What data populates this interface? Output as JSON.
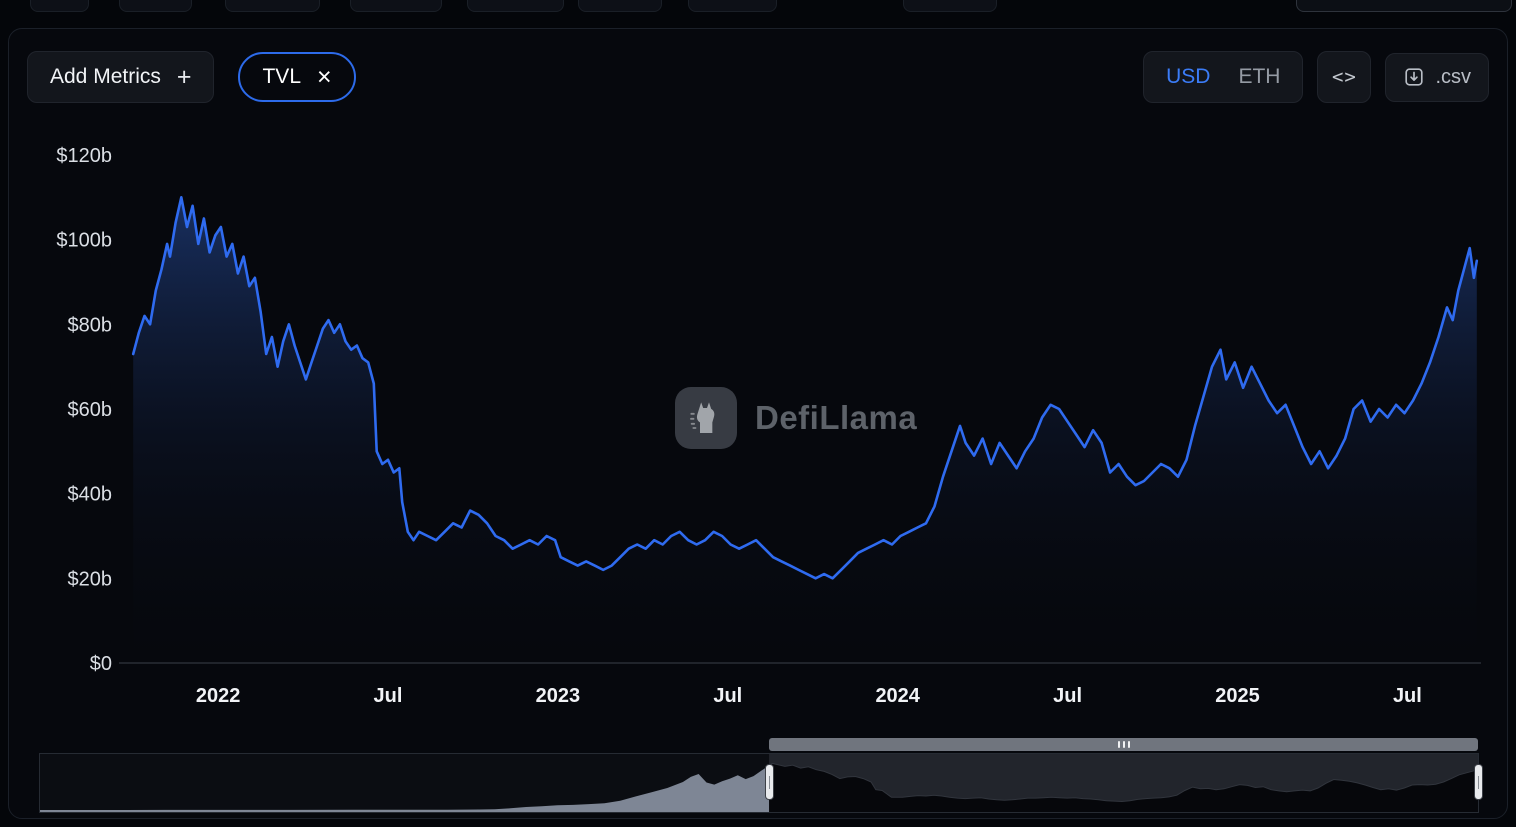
{
  "toolbar": {
    "add_metrics_label": "Add Metrics",
    "add_metrics_icon": "+",
    "metric_pill": {
      "label": "TVL",
      "close_icon": "×"
    },
    "currency_toggle": {
      "options": [
        "USD",
        "ETH"
      ],
      "selected": "USD"
    },
    "embed_icon": "<>",
    "csv_label": ".csv"
  },
  "watermark": {
    "label": "DefiLlama"
  },
  "chart_data": {
    "type": "area",
    "title": "",
    "series_name": "TVL",
    "unit": "USD billions",
    "line_color": "#2f6bf0",
    "x_unit": "months since 2021-10",
    "x_domain": [
      -0.5,
      47.6
    ],
    "y_domain": [
      0,
      120
    ],
    "y_ticks": [
      {
        "v": 120,
        "label": "$120b"
      },
      {
        "v": 100,
        "label": "$100b"
      },
      {
        "v": 80,
        "label": "$80b"
      },
      {
        "v": 60,
        "label": "$60b"
      },
      {
        "v": 40,
        "label": "$40b"
      },
      {
        "v": 20,
        "label": "$20b"
      },
      {
        "v": 0,
        "label": "$0"
      }
    ],
    "x_ticks": [
      {
        "t": 3,
        "label": "2022"
      },
      {
        "t": 9,
        "label": "Jul"
      },
      {
        "t": 15,
        "label": "2023"
      },
      {
        "t": 21,
        "label": "Jul"
      },
      {
        "t": 27,
        "label": "2024"
      },
      {
        "t": 33,
        "label": "Jul"
      },
      {
        "t": 39,
        "label": "2025"
      },
      {
        "t": 45,
        "label": "Jul"
      }
    ],
    "series": [
      {
        "name": "TVL",
        "points": [
          [
            0,
            73
          ],
          [
            0.2,
            78
          ],
          [
            0.4,
            82
          ],
          [
            0.6,
            80
          ],
          [
            0.8,
            88
          ],
          [
            1,
            93
          ],
          [
            1.2,
            99
          ],
          [
            1.3,
            96
          ],
          [
            1.5,
            104
          ],
          [
            1.7,
            110
          ],
          [
            1.9,
            103
          ],
          [
            2.1,
            108
          ],
          [
            2.3,
            99
          ],
          [
            2.5,
            105
          ],
          [
            2.7,
            97
          ],
          [
            2.9,
            101
          ],
          [
            3.1,
            103
          ],
          [
            3.3,
            96
          ],
          [
            3.5,
            99
          ],
          [
            3.7,
            92
          ],
          [
            3.9,
            96
          ],
          [
            4.1,
            89
          ],
          [
            4.3,
            91
          ],
          [
            4.5,
            83
          ],
          [
            4.7,
            73
          ],
          [
            4.9,
            77
          ],
          [
            5.1,
            70
          ],
          [
            5.3,
            76
          ],
          [
            5.5,
            80
          ],
          [
            5.7,
            75
          ],
          [
            5.9,
            71
          ],
          [
            6.1,
            67
          ],
          [
            6.3,
            71
          ],
          [
            6.5,
            75
          ],
          [
            6.7,
            79
          ],
          [
            6.9,
            81
          ],
          [
            7.1,
            78
          ],
          [
            7.3,
            80
          ],
          [
            7.5,
            76
          ],
          [
            7.7,
            74
          ],
          [
            7.9,
            75
          ],
          [
            8.1,
            72
          ],
          [
            8.3,
            71
          ],
          [
            8.5,
            66
          ],
          [
            8.6,
            50
          ],
          [
            8.8,
            47
          ],
          [
            9,
            48
          ],
          [
            9.2,
            45
          ],
          [
            9.4,
            46
          ],
          [
            9.5,
            38
          ],
          [
            9.7,
            31
          ],
          [
            9.9,
            29
          ],
          [
            10.1,
            31
          ],
          [
            10.4,
            30
          ],
          [
            10.7,
            29
          ],
          [
            11,
            31
          ],
          [
            11.3,
            33
          ],
          [
            11.6,
            32
          ],
          [
            11.9,
            36
          ],
          [
            12.2,
            35
          ],
          [
            12.5,
            33
          ],
          [
            12.8,
            30
          ],
          [
            13.1,
            29
          ],
          [
            13.4,
            27
          ],
          [
            13.7,
            28
          ],
          [
            14,
            29
          ],
          [
            14.3,
            28
          ],
          [
            14.6,
            30
          ],
          [
            14.9,
            29
          ],
          [
            15.1,
            25
          ],
          [
            15.4,
            24
          ],
          [
            15.7,
            23
          ],
          [
            16,
            24
          ],
          [
            16.3,
            23
          ],
          [
            16.6,
            22
          ],
          [
            16.9,
            23
          ],
          [
            17.2,
            25
          ],
          [
            17.5,
            27
          ],
          [
            17.8,
            28
          ],
          [
            18.1,
            27
          ],
          [
            18.4,
            29
          ],
          [
            18.7,
            28
          ],
          [
            19,
            30
          ],
          [
            19.3,
            31
          ],
          [
            19.6,
            29
          ],
          [
            19.9,
            28
          ],
          [
            20.2,
            29
          ],
          [
            20.5,
            31
          ],
          [
            20.8,
            30
          ],
          [
            21.1,
            28
          ],
          [
            21.4,
            27
          ],
          [
            21.7,
            28
          ],
          [
            22,
            29
          ],
          [
            22.3,
            27
          ],
          [
            22.6,
            25
          ],
          [
            22.9,
            24
          ],
          [
            23.2,
            23
          ],
          [
            23.5,
            22
          ],
          [
            23.8,
            21
          ],
          [
            24.1,
            20
          ],
          [
            24.4,
            21
          ],
          [
            24.7,
            20
          ],
          [
            25,
            22
          ],
          [
            25.3,
            24
          ],
          [
            25.6,
            26
          ],
          [
            25.9,
            27
          ],
          [
            26.2,
            28
          ],
          [
            26.5,
            29
          ],
          [
            26.8,
            28
          ],
          [
            27.1,
            30
          ],
          [
            27.4,
            31
          ],
          [
            27.7,
            32
          ],
          [
            28,
            33
          ],
          [
            28.3,
            37
          ],
          [
            28.6,
            44
          ],
          [
            28.9,
            50
          ],
          [
            29.2,
            56
          ],
          [
            29.4,
            52
          ],
          [
            29.7,
            49
          ],
          [
            30,
            53
          ],
          [
            30.3,
            47
          ],
          [
            30.6,
            52
          ],
          [
            30.9,
            49
          ],
          [
            31.2,
            46
          ],
          [
            31.5,
            50
          ],
          [
            31.8,
            53
          ],
          [
            32.1,
            58
          ],
          [
            32.4,
            61
          ],
          [
            32.7,
            60
          ],
          [
            33,
            57
          ],
          [
            33.3,
            54
          ],
          [
            33.6,
            51
          ],
          [
            33.9,
            55
          ],
          [
            34.2,
            52
          ],
          [
            34.5,
            45
          ],
          [
            34.8,
            47
          ],
          [
            35.1,
            44
          ],
          [
            35.4,
            42
          ],
          [
            35.7,
            43
          ],
          [
            36,
            45
          ],
          [
            36.3,
            47
          ],
          [
            36.6,
            46
          ],
          [
            36.9,
            44
          ],
          [
            37.2,
            48
          ],
          [
            37.5,
            56
          ],
          [
            37.8,
            63
          ],
          [
            38.1,
            70
          ],
          [
            38.4,
            74
          ],
          [
            38.6,
            67
          ],
          [
            38.9,
            71
          ],
          [
            39.2,
            65
          ],
          [
            39.5,
            70
          ],
          [
            39.8,
            66
          ],
          [
            40.1,
            62
          ],
          [
            40.4,
            59
          ],
          [
            40.7,
            61
          ],
          [
            41,
            56
          ],
          [
            41.3,
            51
          ],
          [
            41.6,
            47
          ],
          [
            41.9,
            50
          ],
          [
            42.2,
            46
          ],
          [
            42.5,
            49
          ],
          [
            42.8,
            53
          ],
          [
            43.1,
            60
          ],
          [
            43.4,
            62
          ],
          [
            43.7,
            57
          ],
          [
            44,
            60
          ],
          [
            44.3,
            58
          ],
          [
            44.6,
            61
          ],
          [
            44.9,
            59
          ],
          [
            45.2,
            62
          ],
          [
            45.5,
            66
          ],
          [
            45.8,
            71
          ],
          [
            46.1,
            77
          ],
          [
            46.4,
            84
          ],
          [
            46.6,
            81
          ],
          [
            46.8,
            88
          ],
          [
            47,
            93
          ],
          [
            47.2,
            98
          ],
          [
            47.35,
            91
          ],
          [
            47.45,
            95
          ]
        ]
      }
    ],
    "brush": {
      "t_domain": [
        0,
        91.7
      ],
      "t_unit": "months since 2018-01",
      "v_max": 118,
      "selection_start_fraction": 0.507,
      "points": [
        [
          0,
          0.05
        ],
        [
          4,
          0.1
        ],
        [
          8,
          0.15
        ],
        [
          12,
          0.25
        ],
        [
          16,
          0.3
        ],
        [
          20,
          0.45
        ],
        [
          24,
          0.6
        ],
        [
          26,
          0.8
        ],
        [
          28,
          1.2
        ],
        [
          29,
          2
        ],
        [
          30,
          4
        ],
        [
          31,
          7
        ],
        [
          32,
          9
        ],
        [
          33,
          11
        ],
        [
          34,
          12
        ],
        [
          35,
          14
        ],
        [
          36,
          16
        ],
        [
          37,
          22
        ],
        [
          38,
          32
        ],
        [
          39,
          42
        ],
        [
          40,
          52
        ],
        [
          41,
          66
        ],
        [
          41.5,
          78
        ],
        [
          42,
          85
        ],
        [
          42.5,
          65
        ],
        [
          43,
          60
        ],
        [
          43.5,
          68
        ],
        [
          44,
          74
        ],
        [
          44.5,
          82
        ],
        [
          45,
          73
        ],
        [
          45.5,
          80
        ],
        [
          46,
          93
        ],
        [
          46.7,
          110
        ],
        [
          47.5,
          103
        ],
        [
          48,
          106
        ],
        [
          48.5,
          99
        ],
        [
          49,
          102
        ],
        [
          49.5,
          95
        ],
        [
          50,
          91
        ],
        [
          50.5,
          84
        ],
        [
          51,
          74
        ],
        [
          51.5,
          78
        ],
        [
          52,
          79
        ],
        [
          52.5,
          74
        ],
        [
          53,
          66
        ],
        [
          53.3,
          48
        ],
        [
          53.7,
          46
        ],
        [
          54,
          38
        ],
        [
          54.3,
          30
        ],
        [
          55,
          30
        ],
        [
          55.5,
          32
        ],
        [
          56,
          34
        ],
        [
          56.5,
          33
        ],
        [
          57,
          35
        ],
        [
          57.5,
          33
        ],
        [
          58,
          30
        ],
        [
          58.5,
          28
        ],
        [
          59,
          27
        ],
        [
          59.5,
          28
        ],
        [
          60,
          29
        ],
        [
          60.5,
          26
        ],
        [
          61,
          24
        ],
        [
          61.5,
          23
        ],
        [
          62,
          24
        ],
        [
          62.5,
          26
        ],
        [
          63,
          28
        ],
        [
          63.5,
          28
        ],
        [
          64,
          29
        ],
        [
          64.5,
          30
        ],
        [
          65,
          29
        ],
        [
          65.5,
          28
        ],
        [
          66,
          29
        ],
        [
          66.5,
          27
        ],
        [
          67,
          26
        ],
        [
          67.5,
          24
        ],
        [
          68,
          22
        ],
        [
          68.5,
          21
        ],
        [
          69,
          20
        ],
        [
          69.5,
          22
        ],
        [
          70,
          25
        ],
        [
          70.5,
          27
        ],
        [
          71,
          28
        ],
        [
          71.5,
          29
        ],
        [
          72,
          31
        ],
        [
          72.5,
          35
        ],
        [
          73,
          46
        ],
        [
          73.5,
          54
        ],
        [
          74,
          50
        ],
        [
          74.5,
          51
        ],
        [
          75,
          48
        ],
        [
          75.5,
          50
        ],
        [
          76,
          55
        ],
        [
          76.5,
          60
        ],
        [
          77,
          58
        ],
        [
          77.5,
          53
        ],
        [
          78,
          55
        ],
        [
          78.5,
          48
        ],
        [
          79,
          45
        ],
        [
          79.5,
          43
        ],
        [
          80,
          45
        ],
        [
          80.5,
          47
        ],
        [
          81,
          45
        ],
        [
          81.5,
          52
        ],
        [
          82,
          63
        ],
        [
          82.5,
          72
        ],
        [
          83,
          70
        ],
        [
          83.5,
          68
        ],
        [
          84,
          64
        ],
        [
          84.5,
          59
        ],
        [
          85,
          53
        ],
        [
          85.5,
          48
        ],
        [
          86,
          50
        ],
        [
          86.5,
          47
        ],
        [
          87,
          52
        ],
        [
          87.5,
          59
        ],
        [
          88,
          60
        ],
        [
          88.5,
          59
        ],
        [
          89,
          61
        ],
        [
          89.5,
          66
        ],
        [
          90,
          74
        ],
        [
          90.5,
          83
        ],
        [
          91,
          88
        ],
        [
          91.7,
          95
        ]
      ]
    }
  }
}
